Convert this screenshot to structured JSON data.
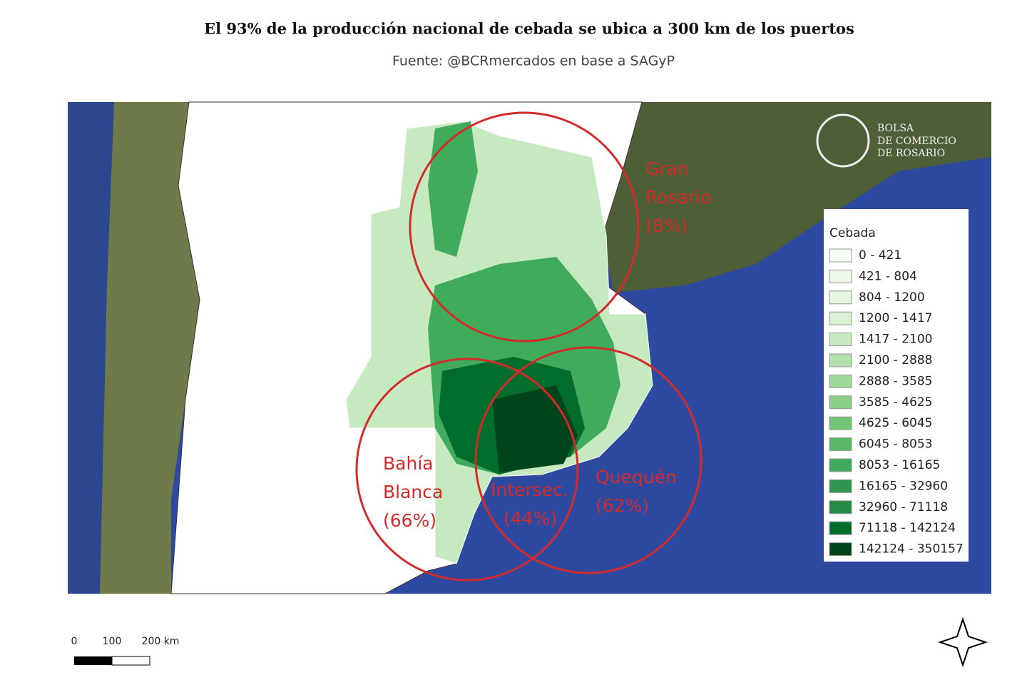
{
  "header": {
    "title": "El 93% de la producción nacional de cebada se ubica a 300 km de los puertos",
    "source": "Fuente: @BCRmercados en base a SAGyP"
  },
  "logo": [
    "BOLSA",
    "DE COMERCIO",
    "DE ROSARIO"
  ],
  "zones": [
    {
      "lines": [
        "Gran",
        "Rosario",
        "(8%)"
      ]
    },
    {
      "lines": [
        "Bahía",
        "Blanca",
        "(66%)"
      ]
    },
    {
      "lines": [
        "Intersec.",
        "(44%)"
      ]
    },
    {
      "lines": [
        "Quequén",
        "(62%)"
      ]
    }
  ],
  "legend": {
    "title": "Cebada",
    "items": [
      {
        "label": "0 - 421",
        "color": "#f7fcf5"
      },
      {
        "label": "421 - 804",
        "color": "#eef8ea"
      },
      {
        "label": "804 - 1200",
        "color": "#e5f5e0"
      },
      {
        "label": "1200 - 1417",
        "color": "#d9f0d3"
      },
      {
        "label": "1417 - 2100",
        "color": "#c7e9c0"
      },
      {
        "label": "2100 - 2888",
        "color": "#b2dfab"
      },
      {
        "label": "2888 - 3585",
        "color": "#a1d99b"
      },
      {
        "label": "3585 - 4625",
        "color": "#8ace88"
      },
      {
        "label": "4625 - 6045",
        "color": "#74c476"
      },
      {
        "label": "6045 - 8053",
        "color": "#5ab767"
      },
      {
        "label": "8053 - 16165",
        "color": "#41ab5d"
      },
      {
        "label": "16165 - 32960",
        "color": "#2e9650"
      },
      {
        "label": "32960 - 71118",
        "color": "#238b45"
      },
      {
        "label": "71118 - 142124",
        "color": "#006d2c"
      },
      {
        "label": "142124 - 350157",
        "color": "#00441b"
      }
    ]
  },
  "scale_bar": [
    "0",
    "100",
    "200 km"
  ]
}
